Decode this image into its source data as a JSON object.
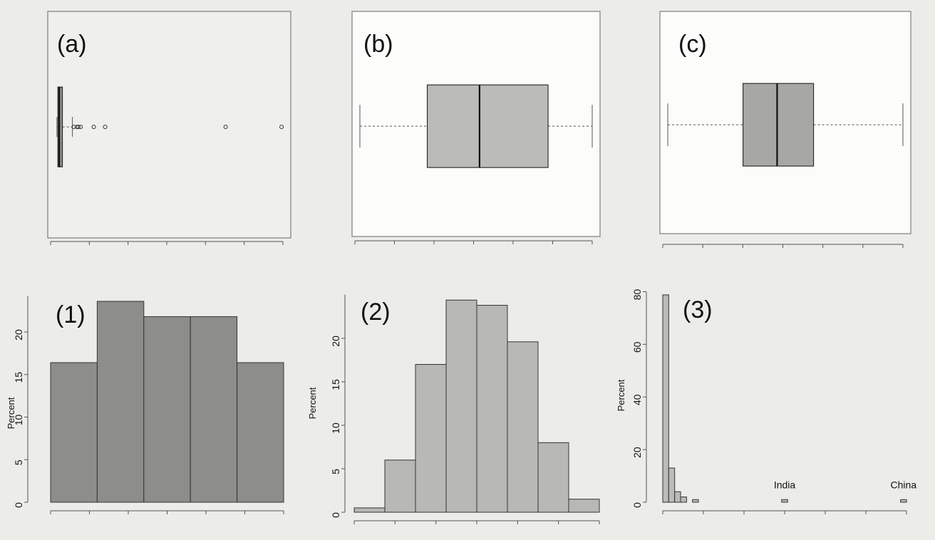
{
  "chart_data": [
    {
      "type": "boxplot",
      "panel_label": "(a)",
      "box_color": "#8e8e8b",
      "xlim": [
        0,
        100
      ],
      "stats": {
        "min": 0.6,
        "q1": 1.0,
        "median": 1.6,
        "q3": 3.0,
        "max": 7.4
      },
      "outliers": [
        8.0,
        9.4,
        10.0,
        11.0,
        16.8,
        21.8,
        74.8,
        99.4
      ]
    },
    {
      "type": "boxplot",
      "panel_label": "(b)",
      "box_color": "#bbbbb8",
      "xlim": [
        0,
        100
      ],
      "stats": {
        "min": 0.0,
        "q1": 29.0,
        "median": 51.5,
        "q3": 81.0,
        "max": 100.0
      },
      "outliers": []
    },
    {
      "type": "boxplot",
      "panel_label": "(c)",
      "box_color": "#a7a7a4",
      "xlim": [
        0,
        100
      ],
      "stats": {
        "min": 0.0,
        "q1": 32.0,
        "median": 46.5,
        "q3": 62.0,
        "max": 100.0
      },
      "outliers": []
    },
    {
      "type": "bar",
      "panel_label": "(1)",
      "bar_color": "#8d8d8a",
      "ylabel": "Percent",
      "ylim": [
        0,
        24.6
      ],
      "yticks": [
        "0",
        "5",
        "10",
        "15",
        "20"
      ],
      "values": [
        16.4,
        23.6,
        21.8,
        21.8,
        16.4
      ]
    },
    {
      "type": "bar",
      "panel_label": "(2)",
      "bar_color": "#b8b8b6",
      "ylabel": "Percent",
      "ylim": [
        0,
        25.4
      ],
      "yticks": [
        "0",
        "5",
        "10",
        "15",
        "20"
      ],
      "values": [
        0.5,
        6.0,
        17.0,
        24.4,
        23.8,
        19.6,
        8.0,
        1.5
      ]
    },
    {
      "type": "bar",
      "panel_label": "(3)",
      "bar_color": "#bbbbb8",
      "ylabel": "Percent",
      "ylim": [
        0,
        81.2
      ],
      "yticks": [
        "0",
        "20",
        "40",
        "60",
        "80"
      ],
      "values": [
        78.8,
        13.0,
        4.0,
        2.0,
        0.0,
        1.0,
        0.0,
        0.0,
        0.0,
        0.0,
        0.0,
        0.0,
        0.0,
        0.0,
        0.0,
        0.0,
        0.0,
        0.0,
        0.0,
        0.0,
        1.0,
        0.0,
        0.0,
        0.0,
        0.0,
        0.0,
        0.0,
        0.0,
        0.0,
        0.0,
        0.0,
        0.0,
        0.0,
        0.0,
        0.0,
        0.0,
        0.0,
        0.0,
        0.0,
        0.0,
        1.0
      ],
      "annotations": [
        {
          "text": "India",
          "bar_index": 20
        },
        {
          "text": "China",
          "bar_index": 40
        }
      ]
    }
  ]
}
